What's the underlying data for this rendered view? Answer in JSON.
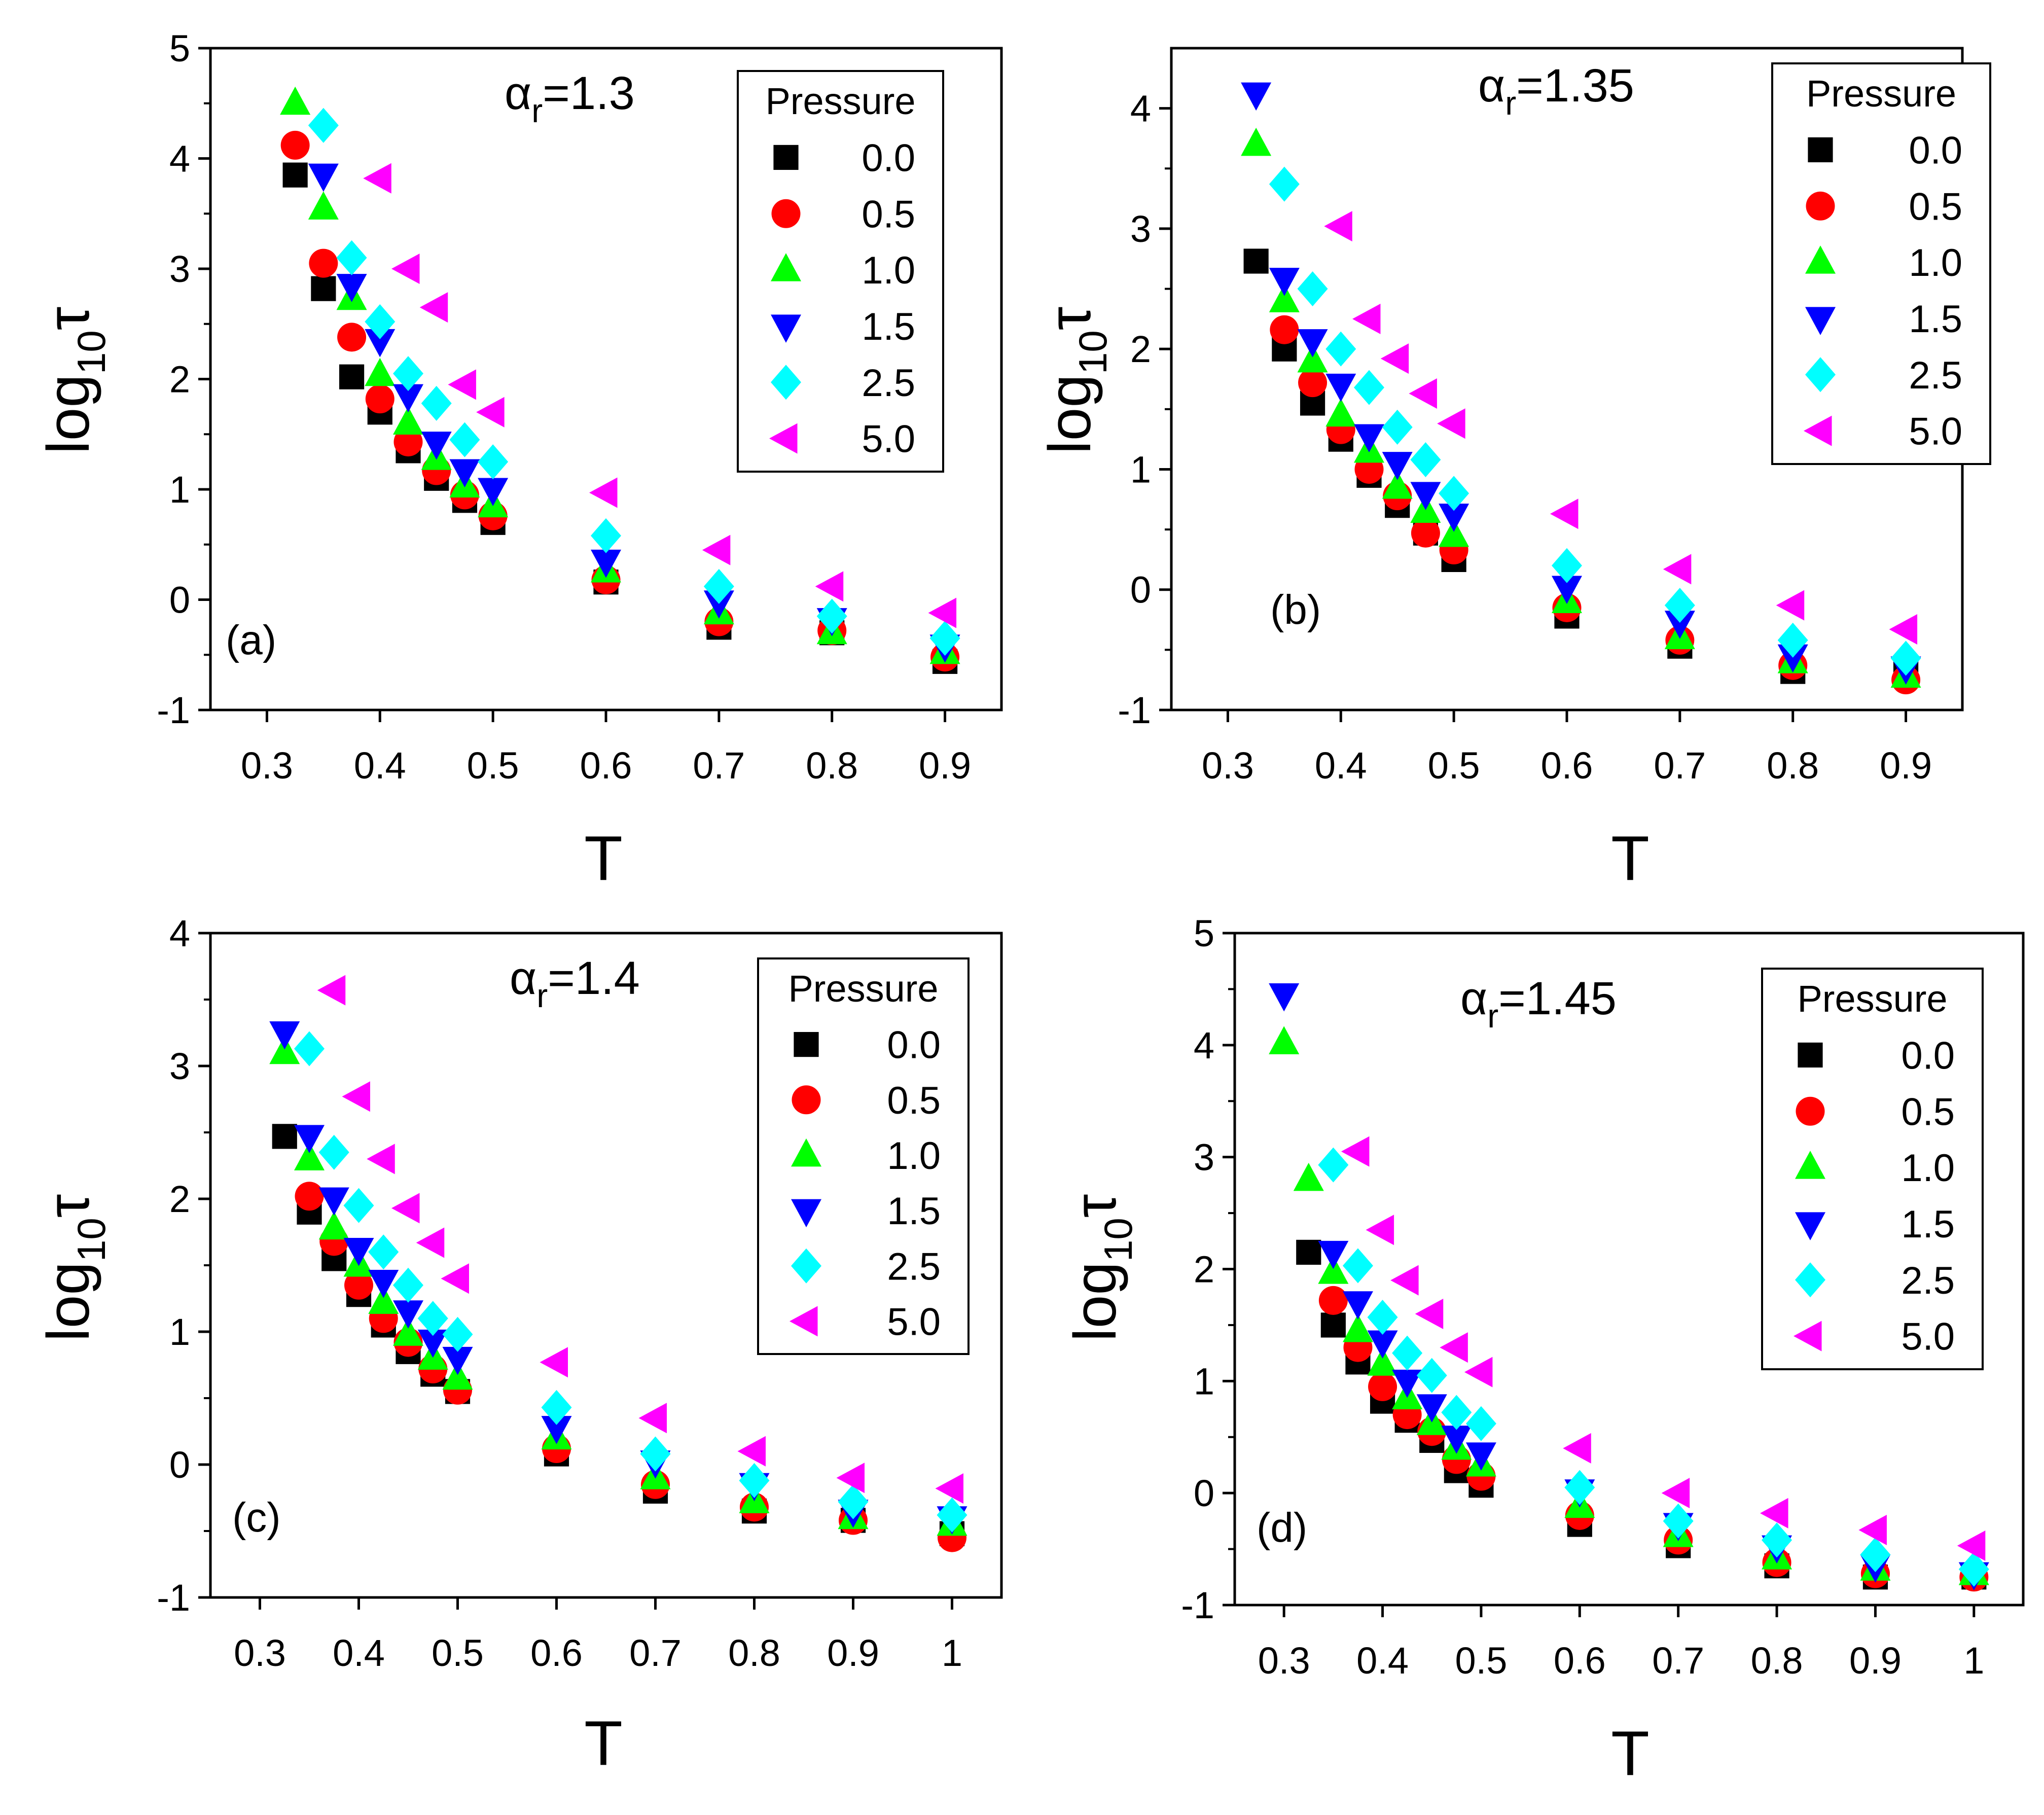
{
  "figure": {
    "background": "#ffffff"
  },
  "series_styles": [
    {
      "pressure": "0.0",
      "marker": "square",
      "color": "#000000",
      "icon": "black-square-marker-icon"
    },
    {
      "pressure": "0.5",
      "marker": "circle",
      "color": "#ff0000",
      "icon": "red-circle-marker-icon"
    },
    {
      "pressure": "1.0",
      "marker": "triangle-up",
      "color": "#00ff00",
      "icon": "green-triangle-up-marker-icon"
    },
    {
      "pressure": "1.5",
      "marker": "triangle-down",
      "color": "#0000ff",
      "icon": "blue-triangle-down-marker-icon"
    },
    {
      "pressure": "2.5",
      "marker": "diamond",
      "color": "#00ffff",
      "icon": "cyan-diamond-marker-icon"
    },
    {
      "pressure": "5.0",
      "marker": "triangle-left",
      "color": "#ff00ff",
      "icon": "magenta-triangle-left-marker-icon"
    }
  ],
  "chart_data": [
    {
      "type": "scatter",
      "panel_label": "(a)",
      "alpha": {
        "symbol": "α",
        "sub": "r",
        "value": "=1.3"
      },
      "xlabel": "T",
      "ylabel": {
        "base": "log",
        "sub": "10",
        "sym": "τ"
      },
      "xlim": [
        0.25,
        0.95
      ],
      "ylim": [
        -1,
        5
      ],
      "xticks": [
        {
          "v": 0.3,
          "label": "0.3"
        },
        {
          "v": 0.4,
          "label": "0.4"
        },
        {
          "v": 0.5,
          "label": "0.5"
        },
        {
          "v": 0.6,
          "label": "0.6"
        },
        {
          "v": 0.7,
          "label": "0.7"
        },
        {
          "v": 0.8,
          "label": "0.8"
        },
        {
          "v": 0.9,
          "label": "0.9"
        }
      ],
      "yticks": [
        {
          "v": -1,
          "label": "-1"
        },
        {
          "v": 0,
          "label": "0"
        },
        {
          "v": 1,
          "label": "1"
        },
        {
          "v": 2,
          "label": "2"
        },
        {
          "v": 3,
          "label": "3"
        },
        {
          "v": 4,
          "label": "4"
        },
        {
          "v": 5,
          "label": "5"
        }
      ],
      "legend": {
        "title": "Pressure",
        "entries": [
          "0.0",
          "0.5",
          "1.0",
          "1.5",
          "2.5",
          "5.0"
        ]
      },
      "series": [
        {
          "name": "0.0",
          "x": [
            0.325,
            0.35,
            0.375,
            0.4,
            0.425,
            0.45,
            0.475,
            0.5,
            0.6,
            0.7,
            0.8,
            0.9
          ],
          "y": [
            3.85,
            2.82,
            2.02,
            1.7,
            1.35,
            1.1,
            0.9,
            0.7,
            0.16,
            -0.25,
            -0.3,
            -0.56
          ]
        },
        {
          "name": "0.5",
          "x": [
            0.325,
            0.35,
            0.375,
            0.4,
            0.425,
            0.45,
            0.475,
            0.5,
            0.6,
            0.7,
            0.8,
            0.9
          ],
          "y": [
            4.12,
            3.05,
            2.38,
            1.82,
            1.43,
            1.17,
            0.95,
            0.76,
            0.18,
            -0.2,
            -0.28,
            -0.52
          ]
        },
        {
          "name": "1.0",
          "x": [
            0.325,
            0.35,
            0.375,
            0.4,
            0.425,
            0.45,
            0.475,
            0.5,
            0.6,
            0.7,
            0.8,
            0.9
          ],
          "y": [
            4.5,
            3.55,
            2.73,
            2.04,
            1.6,
            1.28,
            1.03,
            0.85,
            0.26,
            -0.12,
            -0.3,
            -0.48
          ]
        },
        {
          "name": "1.5",
          "x": [
            0.35,
            0.375,
            0.4,
            0.425,
            0.45,
            0.475,
            0.5,
            0.6,
            0.7,
            0.8,
            0.9
          ],
          "y": [
            3.85,
            2.85,
            2.35,
            1.85,
            1.42,
            1.17,
            1.0,
            0.35,
            -0.02,
            -0.18,
            -0.42
          ]
        },
        {
          "name": "2.5",
          "x": [
            0.35,
            0.375,
            0.4,
            0.425,
            0.45,
            0.475,
            0.5,
            0.6,
            0.7,
            0.8,
            0.9
          ],
          "y": [
            4.3,
            3.1,
            2.52,
            2.05,
            1.78,
            1.45,
            1.25,
            0.58,
            0.12,
            -0.15,
            -0.35
          ]
        },
        {
          "name": "5.0",
          "x": [
            0.4,
            0.425,
            0.45,
            0.475,
            0.5,
            0.6,
            0.7,
            0.8,
            0.9
          ],
          "y": [
            3.82,
            3.0,
            2.65,
            1.95,
            1.7,
            0.97,
            0.45,
            0.12,
            -0.12
          ]
        }
      ]
    },
    {
      "type": "scatter",
      "panel_label": "(b)",
      "alpha": {
        "symbol": "α",
        "sub": "r",
        "value": "=1.35"
      },
      "xlabel": "T",
      "ylabel": {
        "base": "log",
        "sub": "10",
        "sym": "τ"
      },
      "xlim": [
        0.25,
        0.95
      ],
      "ylim": [
        -1,
        4.5
      ],
      "xticks": [
        {
          "v": 0.3,
          "label": "0.3"
        },
        {
          "v": 0.4,
          "label": "0.4"
        },
        {
          "v": 0.5,
          "label": "0.5"
        },
        {
          "v": 0.6,
          "label": "0.6"
        },
        {
          "v": 0.7,
          "label": "0.7"
        },
        {
          "v": 0.8,
          "label": "0.8"
        },
        {
          "v": 0.9,
          "label": "0.9"
        }
      ],
      "yticks": [
        {
          "v": -1,
          "label": "-1"
        },
        {
          "v": 0,
          "label": "0"
        },
        {
          "v": 1,
          "label": "1"
        },
        {
          "v": 2,
          "label": "2"
        },
        {
          "v": 3,
          "label": "3"
        },
        {
          "v": 4,
          "label": "4"
        }
      ],
      "legend": {
        "title": "Pressure",
        "entries": [
          "0.0",
          "0.5",
          "1.0",
          "1.5",
          "2.5",
          "5.0"
        ]
      },
      "series": [
        {
          "name": "0.0",
          "x": [
            0.325,
            0.35,
            0.375,
            0.4,
            0.425,
            0.45,
            0.475,
            0.5,
            0.6,
            0.7,
            0.8,
            0.9
          ],
          "y": [
            2.73,
            2.0,
            1.55,
            1.25,
            0.95,
            0.7,
            0.47,
            0.25,
            -0.22,
            -0.47,
            -0.68,
            -0.7
          ]
        },
        {
          "name": "0.5",
          "x": [
            0.35,
            0.375,
            0.4,
            0.425,
            0.45,
            0.475,
            0.5,
            0.6,
            0.7,
            0.8,
            0.9
          ],
          "y": [
            2.16,
            1.72,
            1.33,
            1.0,
            0.78,
            0.47,
            0.33,
            -0.15,
            -0.42,
            -0.63,
            -0.75
          ]
        },
        {
          "name": "1.0",
          "x": [
            0.325,
            0.35,
            0.375,
            0.4,
            0.425,
            0.45,
            0.475,
            0.5,
            0.6,
            0.7,
            0.8,
            0.9
          ],
          "y": [
            3.7,
            2.4,
            1.9,
            1.45,
            1.15,
            0.85,
            0.65,
            0.45,
            -0.1,
            -0.4,
            -0.6,
            -0.72
          ]
        },
        {
          "name": "1.5",
          "x": [
            0.325,
            0.35,
            0.375,
            0.4,
            0.425,
            0.45,
            0.475,
            0.5,
            0.6,
            0.7,
            0.8,
            0.9
          ],
          "y": [
            4.12,
            2.58,
            2.07,
            1.7,
            1.28,
            1.05,
            0.8,
            0.62,
            0.02,
            -0.27,
            -0.55,
            -0.65
          ]
        },
        {
          "name": "2.5",
          "x": [
            0.35,
            0.375,
            0.4,
            0.425,
            0.45,
            0.475,
            0.5,
            0.6,
            0.7,
            0.8,
            0.9
          ],
          "y": [
            3.37,
            2.5,
            2.0,
            1.68,
            1.35,
            1.08,
            0.8,
            0.2,
            -0.13,
            -0.42,
            -0.57
          ]
        },
        {
          "name": "5.0",
          "x": [
            0.4,
            0.425,
            0.45,
            0.475,
            0.5,
            0.6,
            0.7,
            0.8,
            0.9
          ],
          "y": [
            3.02,
            2.25,
            1.92,
            1.63,
            1.38,
            0.63,
            0.17,
            -0.13,
            -0.33
          ]
        }
      ]
    },
    {
      "type": "scatter",
      "panel_label": "(c)",
      "alpha": {
        "symbol": "α",
        "sub": "r",
        "value": "=1.4"
      },
      "xlabel": "T",
      "ylabel": {
        "base": "log",
        "sub": "10",
        "sym": "τ"
      },
      "xlim": [
        0.25,
        1.05
      ],
      "ylim": [
        -1,
        4
      ],
      "xticks": [
        {
          "v": 0.3,
          "label": "0.3"
        },
        {
          "v": 0.4,
          "label": "0.4"
        },
        {
          "v": 0.5,
          "label": "0.5"
        },
        {
          "v": 0.6,
          "label": "0.6"
        },
        {
          "v": 0.7,
          "label": "0.7"
        },
        {
          "v": 0.8,
          "label": "0.8"
        },
        {
          "v": 0.9,
          "label": "0.9"
        },
        {
          "v": 1.0,
          "label": "1"
        }
      ],
      "yticks": [
        {
          "v": -1,
          "label": "-1"
        },
        {
          "v": 0,
          "label": "0"
        },
        {
          "v": 1,
          "label": "1"
        },
        {
          "v": 2,
          "label": "2"
        },
        {
          "v": 3,
          "label": "3"
        },
        {
          "v": 4,
          "label": "4"
        }
      ],
      "legend": {
        "title": "Pressure",
        "entries": [
          "0.0",
          "0.5",
          "1.0",
          "1.5",
          "2.5",
          "5.0"
        ]
      },
      "series": [
        {
          "name": "0.0",
          "x": [
            0.325,
            0.35,
            0.375,
            0.4,
            0.425,
            0.45,
            0.475,
            0.5,
            0.6,
            0.7,
            0.8,
            0.9,
            1.0
          ],
          "y": [
            2.47,
            1.9,
            1.55,
            1.28,
            1.05,
            0.85,
            0.68,
            0.55,
            0.08,
            -0.2,
            -0.35,
            -0.42,
            -0.52
          ]
        },
        {
          "name": "0.5",
          "x": [
            0.35,
            0.375,
            0.4,
            0.425,
            0.45,
            0.475,
            0.5,
            0.6,
            0.7,
            0.8,
            0.9,
            1.0
          ],
          "y": [
            2.02,
            1.68,
            1.35,
            1.1,
            0.92,
            0.72,
            0.56,
            0.12,
            -0.15,
            -0.32,
            -0.42,
            -0.55
          ]
        },
        {
          "name": "1.0",
          "x": [
            0.325,
            0.35,
            0.375,
            0.4,
            0.425,
            0.45,
            0.475,
            0.5,
            0.6,
            0.7,
            0.8,
            0.9,
            1.0
          ],
          "y": [
            3.1,
            2.3,
            1.78,
            1.5,
            1.22,
            0.98,
            0.8,
            0.65,
            0.2,
            -0.1,
            -0.28,
            -0.4,
            -0.45
          ]
        },
        {
          "name": "1.5",
          "x": [
            0.325,
            0.35,
            0.375,
            0.4,
            0.425,
            0.45,
            0.475,
            0.5,
            0.6,
            0.7,
            0.8,
            0.9,
            1.0
          ],
          "y": [
            3.25,
            2.47,
            2.0,
            1.62,
            1.38,
            1.15,
            0.93,
            0.8,
            0.28,
            0.02,
            -0.15,
            -0.35,
            -0.4
          ]
        },
        {
          "name": "2.5",
          "x": [
            0.35,
            0.375,
            0.4,
            0.425,
            0.45,
            0.475,
            0.5,
            0.6,
            0.7,
            0.8,
            0.9,
            1.0
          ],
          "y": [
            3.13,
            2.35,
            1.95,
            1.6,
            1.35,
            1.1,
            0.98,
            0.43,
            0.08,
            -0.12,
            -0.28,
            -0.38
          ]
        },
        {
          "name": "5.0",
          "x": [
            0.375,
            0.4,
            0.425,
            0.45,
            0.475,
            0.5,
            0.6,
            0.7,
            0.8,
            0.9,
            1.0
          ],
          "y": [
            3.57,
            2.77,
            2.3,
            1.93,
            1.67,
            1.4,
            0.77,
            0.35,
            0.1,
            -0.1,
            -0.18
          ]
        }
      ]
    },
    {
      "type": "scatter",
      "panel_label": "(d)",
      "alpha": {
        "symbol": "α",
        "sub": "r",
        "value": "=1.45"
      },
      "xlabel": "T",
      "ylabel": {
        "base": "log",
        "sub": "10",
        "sym": "τ"
      },
      "xlim": [
        0.25,
        1.05
      ],
      "ylim": [
        -1,
        5
      ],
      "xticks": [
        {
          "v": 0.3,
          "label": "0.3"
        },
        {
          "v": 0.4,
          "label": "0.4"
        },
        {
          "v": 0.5,
          "label": "0.5"
        },
        {
          "v": 0.6,
          "label": "0.6"
        },
        {
          "v": 0.7,
          "label": "0.7"
        },
        {
          "v": 0.8,
          "label": "0.8"
        },
        {
          "v": 0.9,
          "label": "0.9"
        },
        {
          "v": 1.0,
          "label": "1"
        }
      ],
      "yticks": [
        {
          "v": -1,
          "label": "-1"
        },
        {
          "v": 0,
          "label": "0"
        },
        {
          "v": 1,
          "label": "1"
        },
        {
          "v": 2,
          "label": "2"
        },
        {
          "v": 3,
          "label": "3"
        },
        {
          "v": 4,
          "label": "4"
        },
        {
          "v": 5,
          "label": "5"
        }
      ],
      "legend": {
        "title": "Pressure",
        "entries": [
          "0.0",
          "0.5",
          "1.0",
          "1.5",
          "2.5",
          "5.0"
        ]
      },
      "series": [
        {
          "name": "0.0",
          "x": [
            0.325,
            0.35,
            0.375,
            0.4,
            0.425,
            0.45,
            0.475,
            0.5,
            0.6,
            0.7,
            0.8,
            0.9,
            1.0
          ],
          "y": [
            2.15,
            1.5,
            1.17,
            0.82,
            0.65,
            0.47,
            0.2,
            0.07,
            -0.28,
            -0.47,
            -0.65,
            -0.75,
            -0.75
          ]
        },
        {
          "name": "0.5",
          "x": [
            0.35,
            0.375,
            0.4,
            0.425,
            0.45,
            0.475,
            0.5,
            0.6,
            0.7,
            0.8,
            0.9,
            1.0
          ],
          "y": [
            1.72,
            1.3,
            0.95,
            0.7,
            0.55,
            0.3,
            0.15,
            -0.2,
            -0.42,
            -0.62,
            -0.72,
            -0.75
          ]
        },
        {
          "name": "1.0",
          "x": [
            0.3,
            0.325,
            0.35,
            0.375,
            0.4,
            0.425,
            0.45,
            0.475,
            0.5,
            0.6,
            0.7,
            0.8,
            0.9,
            1.0
          ],
          "y": [
            4.02,
            2.8,
            1.97,
            1.45,
            1.15,
            0.85,
            0.62,
            0.4,
            0.25,
            -0.12,
            -0.38,
            -0.58,
            -0.68,
            -0.72
          ]
        },
        {
          "name": "1.5",
          "x": [
            0.3,
            0.35,
            0.375,
            0.4,
            0.425,
            0.45,
            0.475,
            0.5,
            0.6,
            0.7,
            0.8,
            0.9,
            1.0
          ],
          "y": [
            4.45,
            2.15,
            1.7,
            1.35,
            1.0,
            0.78,
            0.5,
            0.35,
            0.02,
            -0.28,
            -0.48,
            -0.65,
            -0.72
          ]
        },
        {
          "name": "2.5",
          "x": [
            0.35,
            0.375,
            0.4,
            0.425,
            0.45,
            0.475,
            0.5,
            0.6,
            0.7,
            0.8,
            0.9,
            1.0
          ],
          "y": [
            2.93,
            2.03,
            1.57,
            1.25,
            1.05,
            0.72,
            0.62,
            0.05,
            -0.25,
            -0.42,
            -0.55,
            -0.68
          ]
        },
        {
          "name": "5.0",
          "x": [
            0.375,
            0.4,
            0.425,
            0.45,
            0.475,
            0.5,
            0.6,
            0.7,
            0.8,
            0.9,
            1.0
          ],
          "y": [
            3.05,
            2.35,
            1.9,
            1.6,
            1.3,
            1.08,
            0.4,
            0.0,
            -0.18,
            -0.33,
            -0.47
          ]
        }
      ]
    }
  ]
}
